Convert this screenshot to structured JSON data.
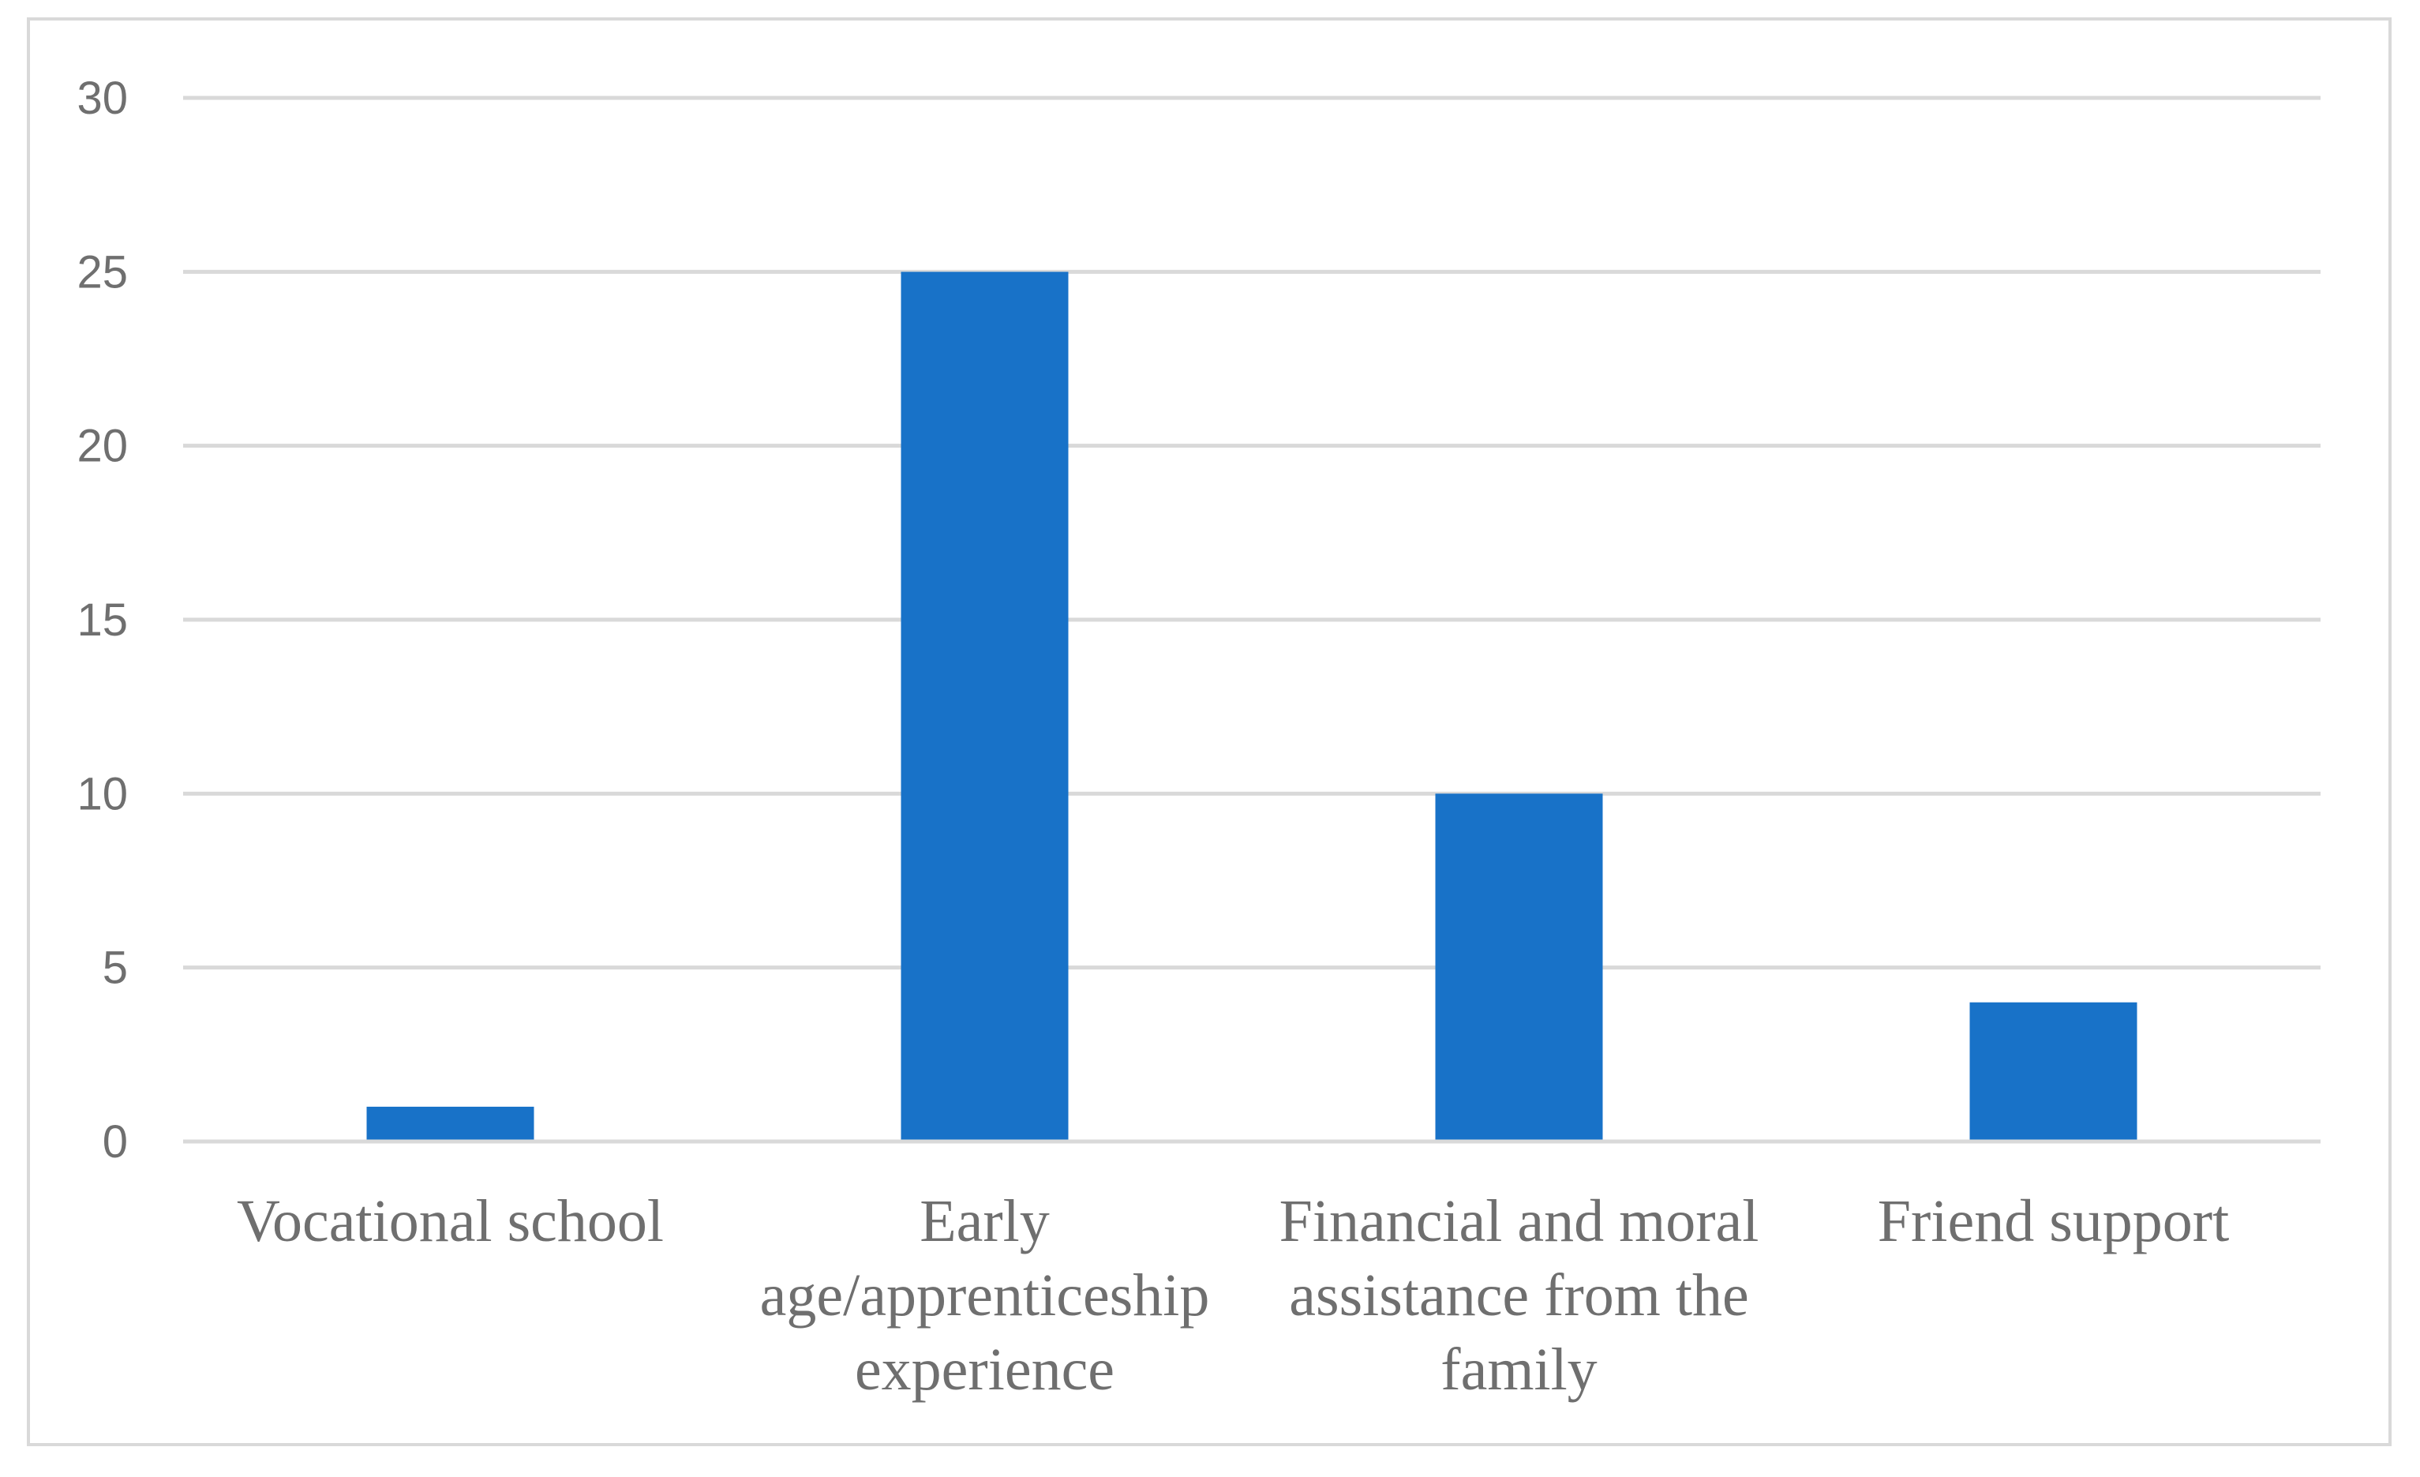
{
  "chart_data": {
    "type": "bar",
    "title": "",
    "xlabel": "",
    "ylabel": "",
    "categories": [
      [
        "Vocational school"
      ],
      [
        "Early",
        "age/apprenticeship",
        "experience"
      ],
      [
        "Financial and moral",
        "assistance from the",
        "family"
      ],
      [
        "Friend support"
      ]
    ],
    "values": [
      1,
      25,
      10,
      4
    ],
    "ylim": [
      0,
      30
    ],
    "yticks": [
      0,
      5,
      10,
      15,
      20,
      25,
      30
    ],
    "grid": true,
    "legend": "none",
    "colors": {
      "bar": "#1872C8",
      "grid": "#D9D9D9",
      "text": "#6F6F6F"
    }
  }
}
